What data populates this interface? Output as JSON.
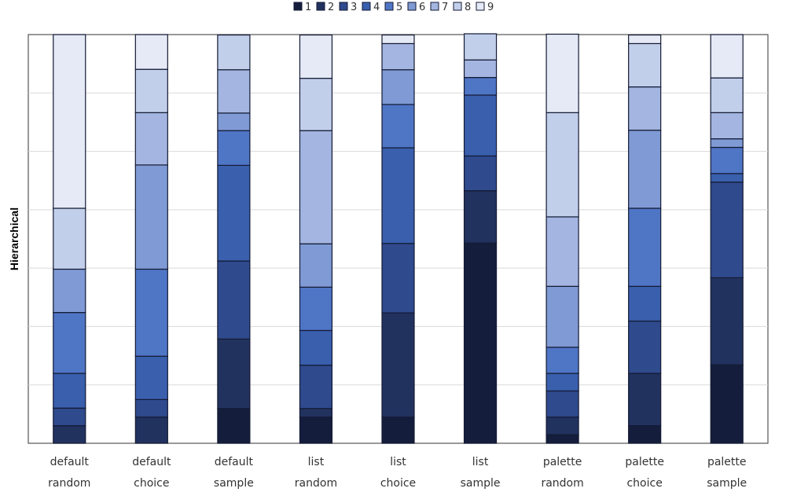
{
  "chart_data": {
    "type": "bar",
    "stacked": true,
    "title": "",
    "xlabel": "",
    "ylabel": "Hierarchical",
    "ylim": [
      0,
      1
    ],
    "grid": true,
    "legend_position": "top-center",
    "categories": [
      [
        "default",
        "random"
      ],
      [
        "default",
        "choice"
      ],
      [
        "default",
        "sample"
      ],
      [
        "list",
        "random"
      ],
      [
        "list",
        "choice"
      ],
      [
        "list",
        "sample"
      ],
      [
        "palette",
        "random"
      ],
      [
        "palette",
        "choice"
      ],
      [
        "palette",
        "sample"
      ]
    ],
    "series": [
      {
        "name": "1",
        "color": "#141e3c",
        "values": [
          0.0,
          0.0,
          0.085,
          0.064,
          0.064,
          0.49,
          0.021,
          0.043,
          0.192
        ]
      },
      {
        "name": "2",
        "color": "#22325f",
        "values": [
          0.043,
          0.064,
          0.17,
          0.021,
          0.255,
          0.128,
          0.043,
          0.128,
          0.213
        ]
      },
      {
        "name": "3",
        "color": "#2f4a8d",
        "values": [
          0.043,
          0.043,
          0.191,
          0.106,
          0.17,
          0.085,
          0.064,
          0.128,
          0.234
        ]
      },
      {
        "name": "4",
        "color": "#395fad",
        "values": [
          0.085,
          0.106,
          0.234,
          0.085,
          0.234,
          0.149,
          0.043,
          0.085,
          0.021
        ]
      },
      {
        "name": "5",
        "color": "#4f75c5",
        "values": [
          0.149,
          0.213,
          0.085,
          0.106,
          0.106,
          0.043,
          0.064,
          0.191,
          0.064
        ]
      },
      {
        "name": "6",
        "color": "#7f9ad4",
        "values": [
          0.106,
          0.255,
          0.043,
          0.106,
          0.085,
          0.0,
          0.149,
          0.191,
          0.021
        ]
      },
      {
        "name": "7",
        "color": "#a3b5e0",
        "values": [
          0.0,
          0.128,
          0.106,
          0.277,
          0.064,
          0.043,
          0.17,
          0.106,
          0.064
        ]
      },
      {
        "name": "8",
        "color": "#c2cfeb",
        "values": [
          0.149,
          0.106,
          0.085,
          0.128,
          0.0,
          0.064,
          0.255,
          0.106,
          0.085
        ]
      },
      {
        "name": "9",
        "color": "#e5eaf6",
        "values": [
          0.425,
          0.085,
          0.0,
          0.106,
          0.021,
          0.0,
          0.192,
          0.021,
          0.106
        ]
      }
    ]
  }
}
